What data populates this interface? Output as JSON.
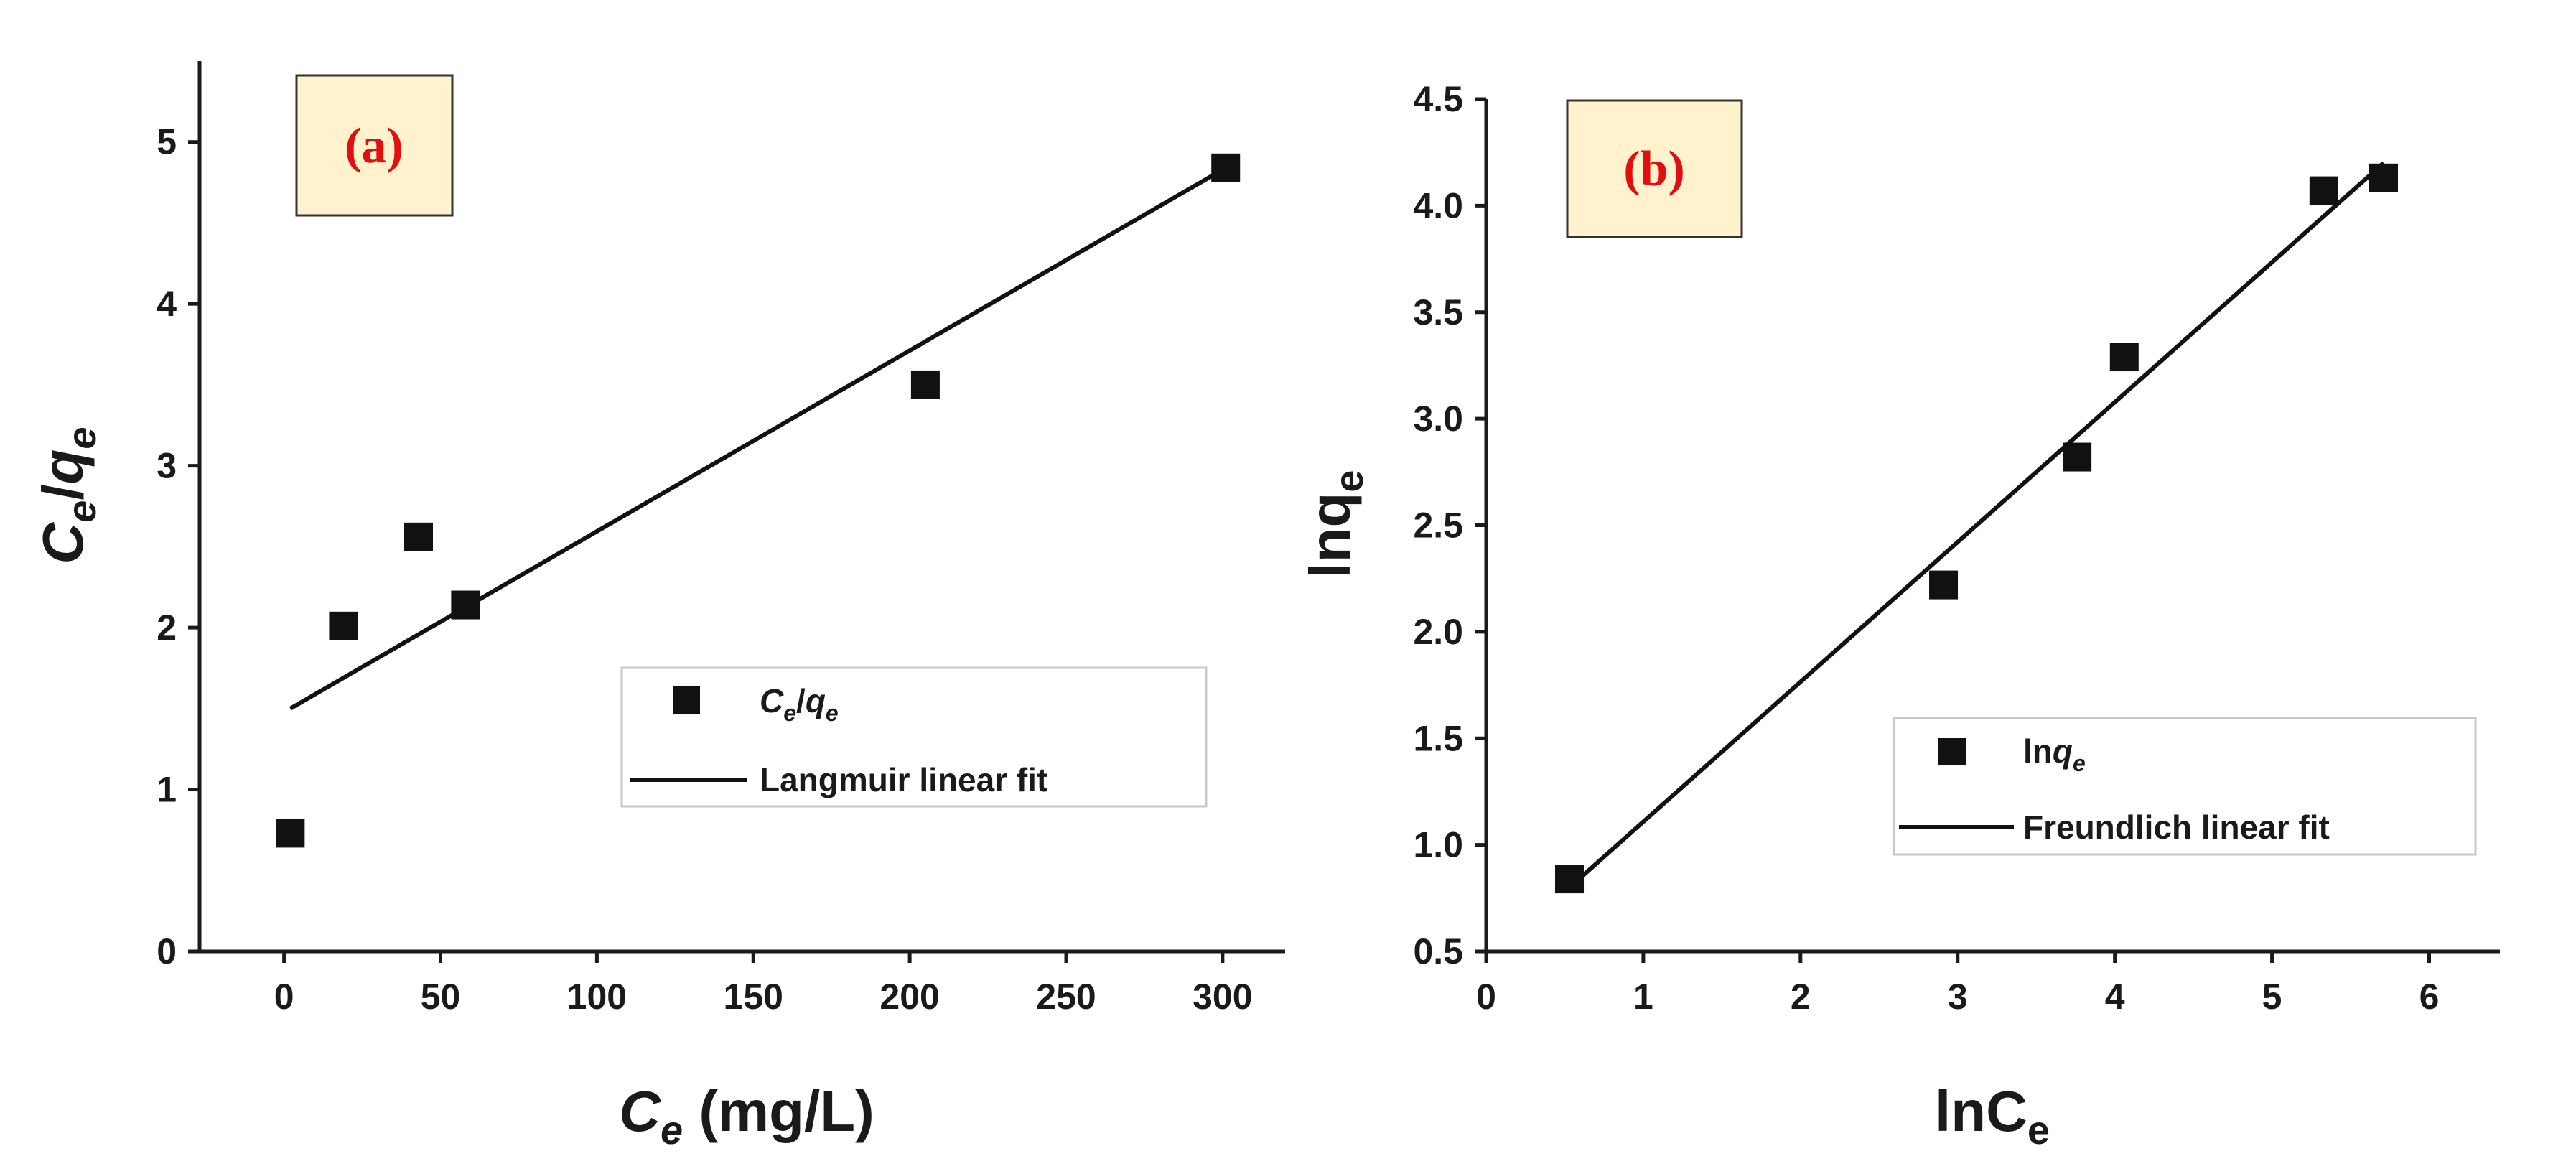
{
  "colors": {
    "panel_tag_text": "#e01010",
    "panel_tag_fill": "#fff2cc",
    "ink": "#1a1a1a"
  },
  "chart_data": [
    {
      "type": "scatter",
      "panel_label": "(a)",
      "title": "",
      "xlabel": {
        "main": "C",
        "sub": "e",
        "rest": " (mg/L)"
      },
      "ylabel": {
        "a": "C",
        "a_sub": "e",
        "slash": "/",
        "b": "q",
        "b_sub": "e"
      },
      "xlim": [
        -27,
        320
      ],
      "ylim": [
        0,
        5.5
      ],
      "xticks": [
        0,
        50,
        100,
        150,
        200,
        250,
        300
      ],
      "xtick_labels": [
        "0",
        "50",
        "100",
        "150",
        "200",
        "250",
        "300"
      ],
      "yticks": [
        0,
        1,
        2,
        3,
        4,
        5
      ],
      "ytick_labels": [
        "0",
        "1",
        "2",
        "3",
        "4",
        "5"
      ],
      "series": [
        {
          "name": "Ce/qe",
          "legend": {
            "a": "C",
            "a_sub": "e",
            "slash": "/",
            "b": "q",
            "b_sub": "e"
          },
          "kind": "scatter",
          "marker": "square",
          "x": [
            2,
            19,
            43,
            58,
            205,
            301
          ],
          "y": [
            0.73,
            2.01,
            2.56,
            2.14,
            3.5,
            4.84
          ]
        },
        {
          "name": "Langmuir linear fit",
          "legend": "Langmuir linear fit",
          "kind": "line",
          "x": [
            2,
            301
          ],
          "y": [
            1.5,
            4.84
          ]
        }
      ],
      "legend_position": "lower-right"
    },
    {
      "type": "scatter",
      "panel_label": "(b)",
      "title": "",
      "xlabel": {
        "main": "lnC",
        "sub": "e",
        "rest": ""
      },
      "ylabel": {
        "main": "lnq",
        "sub": "e"
      },
      "xlim": [
        0,
        6.45
      ],
      "ylim": [
        0.5,
        4.5
      ],
      "xticks": [
        0,
        1,
        2,
        3,
        4,
        5,
        6
      ],
      "xtick_labels": [
        "0",
        "1",
        "2",
        "3",
        "4",
        "5",
        "6"
      ],
      "yticks": [
        0.5,
        1.0,
        1.5,
        2.0,
        2.5,
        3.0,
        3.5,
        4.0,
        4.5
      ],
      "ytick_labels": [
        "0.5",
        "1.0",
        "1.5",
        "2.0",
        "2.5",
        "3.0",
        "3.5",
        "4.0",
        "4.5"
      ],
      "series": [
        {
          "name": "lnqe",
          "legend": {
            "main": "ln",
            "b": "q",
            "b_sub": "e"
          },
          "kind": "scatter",
          "marker": "square",
          "x": [
            0.53,
            2.91,
            3.76,
            4.06,
            5.33,
            5.71
          ],
          "y": [
            0.84,
            2.22,
            2.82,
            3.29,
            4.07,
            4.13
          ]
        },
        {
          "name": "Freundlich linear fit",
          "legend": "Freundlich linear fit",
          "kind": "line",
          "x": [
            0.53,
            5.71
          ],
          "y": [
            0.8,
            4.2
          ]
        }
      ],
      "legend_position": "lower-right"
    }
  ]
}
